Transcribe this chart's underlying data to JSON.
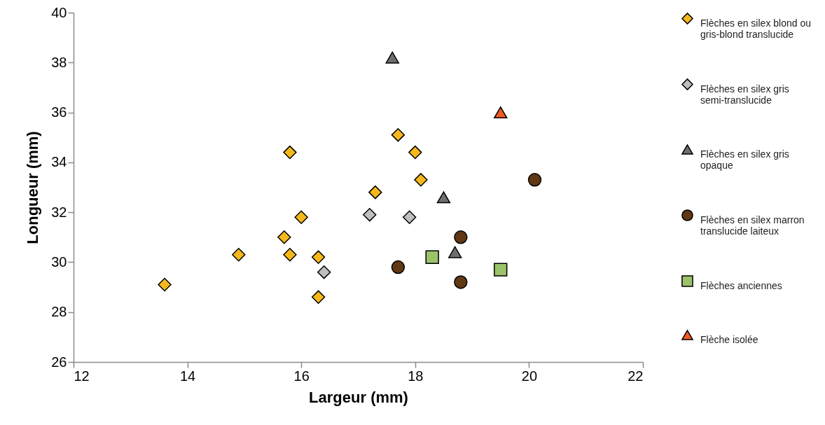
{
  "chart_data": {
    "type": "scatter",
    "xlabel": "Largeur (mm)",
    "ylabel": "Longueur (mm)",
    "xlim": [
      12,
      22
    ],
    "xticks": [
      12,
      14,
      16,
      18,
      20,
      22
    ],
    "ylim": [
      26,
      40
    ],
    "yticks": [
      26,
      28,
      30,
      32,
      34,
      36,
      38,
      40
    ],
    "grid": false,
    "legend": "right",
    "series": [
      {
        "name": "Flèches en silex blond ou gris-blond translucide",
        "color": "#f5b81c",
        "marker": "diamond",
        "x": [
          13.6,
          14.9,
          15.8,
          16.0,
          15.7,
          15.8,
          16.3,
          16.3,
          17.7,
          18.0,
          18.1,
          17.3
        ],
        "values": [
          29.1,
          30.3,
          34.4,
          31.8,
          31.0,
          30.3,
          30.2,
          28.6,
          35.1,
          34.4,
          33.3,
          32.8
        ]
      },
      {
        "name": "Flèches en silex gris semi-translucide",
        "color": "#bfbfbf",
        "marker": "diamond",
        "x": [
          16.4,
          17.2,
          17.9
        ],
        "values": [
          29.6,
          31.9,
          31.8
        ]
      },
      {
        "name": "Flèches en silex gris opaque",
        "color": "#6d6e71",
        "marker": "triangle",
        "x": [
          17.6,
          18.5,
          18.7
        ],
        "values": [
          38.2,
          32.6,
          30.4
        ]
      },
      {
        "name": "Flèches en silex marron translucide laiteux",
        "color": "#603813",
        "marker": "circle",
        "x": [
          20.1,
          18.8,
          17.7,
          18.8
        ],
        "values": [
          33.3,
          31.0,
          29.8,
          29.2
        ]
      },
      {
        "name": "Flèches anciennes",
        "color": "#9bc36a",
        "marker": "square",
        "x": [
          18.3,
          19.5
        ],
        "values": [
          30.2,
          29.7
        ]
      },
      {
        "name": "Flèche isolée",
        "color": "#f15a24",
        "marker": "triangle",
        "x": [
          19.5
        ],
        "values": [
          36.0
        ]
      }
    ]
  }
}
